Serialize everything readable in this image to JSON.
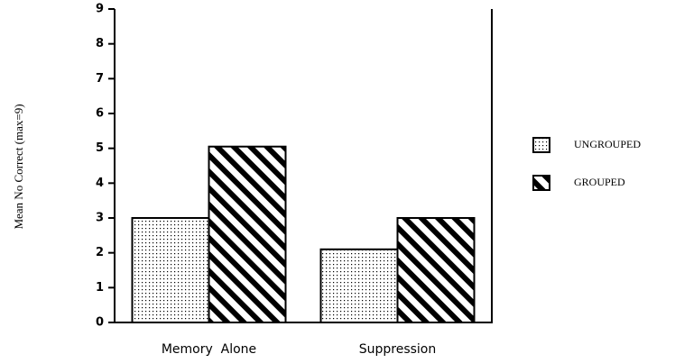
{
  "chart_data": {
    "type": "bar",
    "y_label": "Mean No Correct (max=9)",
    "categories": [
      "Memory  Alone",
      "Suppression"
    ],
    "series": [
      {
        "name": "UNGROUPED",
        "color": "#000000",
        "pattern": "dots",
        "values": [
          3.0,
          2.1
        ]
      },
      {
        "name": "GROUPED",
        "color": "#000000",
        "pattern": "stripes",
        "values": [
          5.05,
          3.0
        ]
      }
    ],
    "ylim": [
      0,
      9
    ],
    "yticks": [
      0,
      1,
      2,
      3,
      4,
      5,
      6,
      7,
      8,
      9
    ],
    "grid": false,
    "legend": "right"
  }
}
